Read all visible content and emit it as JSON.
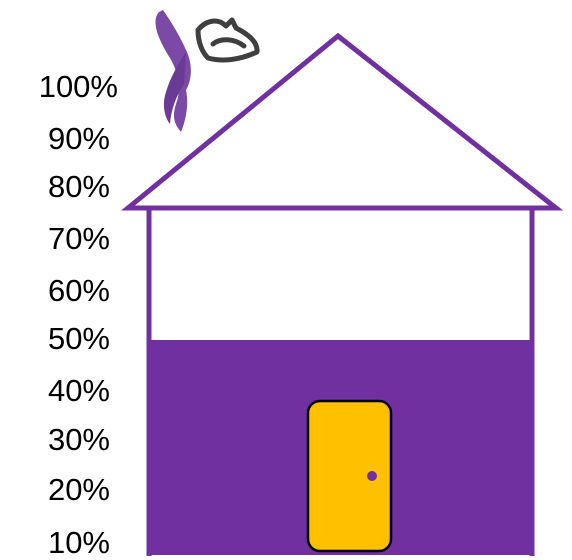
{
  "chart_data": {
    "type": "progress",
    "value": 50,
    "unit": "%",
    "tick_labels": [
      "100%",
      "90%",
      "80%",
      "70%",
      "60%",
      "50%",
      "40%",
      "30%",
      "20%",
      "10%"
    ],
    "ylim": [
      10,
      100
    ],
    "fill_color": "#7030A0",
    "outline_color": "#7030A0",
    "door_color": "#FFC000",
    "door_knob_color": "#7030A0",
    "grid": false,
    "legend": "none"
  },
  "logo": {
    "icon": "purple-ribbon-bird-icon",
    "ribbon_color": "#7B4AA6",
    "bird_color": "#3F3F3F"
  }
}
